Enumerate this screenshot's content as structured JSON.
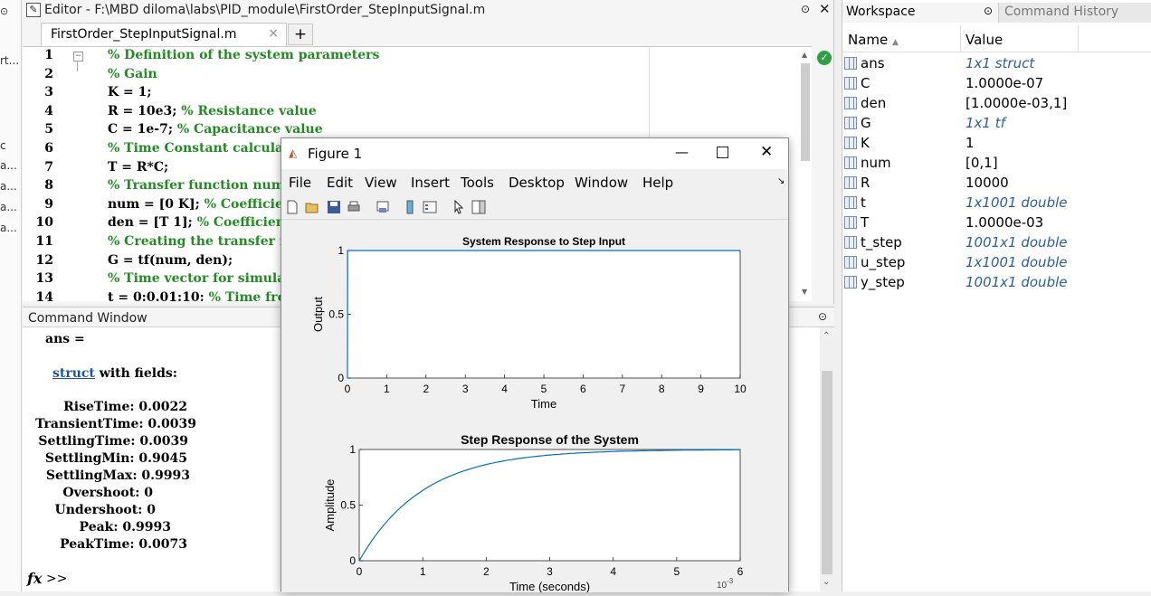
{
  "left_strip": {
    "rows": [
      "rt...",
      "c",
      "a...",
      "a...",
      "a...",
      "a..."
    ]
  },
  "editor": {
    "title": "Editor - F:\\MBD diloma\\labs\\PID_module\\FirstOrder_StepInputSignal.m",
    "tab": "FirstOrder_StepInputSignal.m",
    "tab_close": "×",
    "plus": "+",
    "lines": [
      {
        "n": "1",
        "code": "",
        "comment": "% Definition of the system parameters"
      },
      {
        "n": "2",
        "code": "",
        "comment": "% Gain"
      },
      {
        "n": "3",
        "code": "K = 1;",
        "comment": ""
      },
      {
        "n": "4",
        "code": "R = 10e3; ",
        "comment": "% Resistance value"
      },
      {
        "n": "5",
        "code": "C = 1e-7; ",
        "comment": "% Capacitance value"
      },
      {
        "n": "6",
        "code": "",
        "comment": "% Time Constant calculation"
      },
      {
        "n": "7",
        "code": "T = R*C;",
        "comment": ""
      },
      {
        "n": "8",
        "code": "",
        "comment": "% Transfer function numerator"
      },
      {
        "n": "9",
        "code": "num =  [0 K]; ",
        "comment": "% Coefficients"
      },
      {
        "n": "10",
        "code": "den = [T 1]; ",
        "comment": "% Coefficients of"
      },
      {
        "n": "11",
        "code": "",
        "comment": "% Creating the transfer function"
      },
      {
        "n": "12",
        "code": "G = tf(num, den);",
        "comment": ""
      },
      {
        "n": "13",
        "code": "",
        "comment": "% Time vector for simulation"
      },
      {
        "n": "14",
        "code": "t = 0:0.01:10; ",
        "comment": "% Time from"
      }
    ]
  },
  "command_window": {
    "title": "Command Window",
    "ans": "ans =",
    "struct_link": "struct",
    "with_fields": " with fields:",
    "fields": [
      "RiseTime: 0.0022",
      "TransientTime: 0.0039",
      "SettlingTime: 0.0039",
      "SettlingMin: 0.9045",
      "SettlingMax: 0.9993",
      "Overshoot: 0",
      "Undershoot: 0",
      "Peak: 0.9993",
      "PeakTime: 0.0073"
    ],
    "prompt_icon": "fx",
    "prompt": ">>"
  },
  "workspace": {
    "title": "Workspace",
    "history_tab": "Command History",
    "col_name": "Name",
    "col_value": "Value",
    "rows": [
      {
        "name": "ans",
        "value": "1x1 struct",
        "italic": true
      },
      {
        "name": "C",
        "value": "1.0000e-07",
        "italic": false
      },
      {
        "name": "den",
        "value": "[1.0000e-03,1]",
        "italic": false
      },
      {
        "name": "G",
        "value": "1x1 tf",
        "italic": true
      },
      {
        "name": "K",
        "value": "1",
        "italic": false
      },
      {
        "name": "num",
        "value": "[0,1]",
        "italic": false
      },
      {
        "name": "R",
        "value": "10000",
        "italic": false
      },
      {
        "name": "t",
        "value": "1x1001 double",
        "italic": true
      },
      {
        "name": "T",
        "value": "1.0000e-03",
        "italic": false
      },
      {
        "name": "t_step",
        "value": "1001x1 double",
        "italic": true
      },
      {
        "name": "u_step",
        "value": "1x1001 double",
        "italic": true
      },
      {
        "name": "y_step",
        "value": "1001x1 double",
        "italic": true
      }
    ]
  },
  "figure": {
    "title": "Figure 1",
    "menu": [
      "File",
      "Edit",
      "View",
      "Insert",
      "Tools",
      "Desktop",
      "Window",
      "Help"
    ],
    "toolbar_icons": [
      "new-figure-icon",
      "open-icon",
      "save-icon",
      "print-icon",
      "link-icon",
      "colorbar-icon",
      "legend-icon",
      "pointer-icon",
      "property-editor-icon"
    ]
  },
  "chart_data": [
    {
      "type": "line",
      "title": "System Response to Step Input",
      "xlabel": "Time",
      "ylabel": "Output",
      "xlim": [
        0,
        10
      ],
      "ylim": [
        0,
        1
      ],
      "x_ticks": [
        "0",
        "1",
        "2",
        "3",
        "4",
        "5",
        "6",
        "7",
        "8",
        "9",
        "10"
      ],
      "y_ticks": [
        "0",
        "0.5",
        "1"
      ],
      "series": [
        {
          "x": [
            0,
            0.005,
            0.01,
            10
          ],
          "y": [
            0,
            0.99,
            1,
            1
          ],
          "color": "#0072bd"
        }
      ]
    },
    {
      "type": "line",
      "title": "Step Response of the System",
      "xlabel": "Time (seconds)",
      "ylabel": "Amplitude",
      "x_multiplier": "10",
      "x_multiplier_exp": "-3",
      "xlim": [
        0,
        6
      ],
      "ylim": [
        0,
        1
      ],
      "x_ticks": [
        "0",
        "1",
        "2",
        "3",
        "4",
        "5",
        "6"
      ],
      "y_ticks": [
        "0",
        "0.5",
        "1"
      ],
      "series": [
        {
          "model": "first-order",
          "time_constant": 1,
          "color": "#0072bd"
        }
      ]
    }
  ]
}
